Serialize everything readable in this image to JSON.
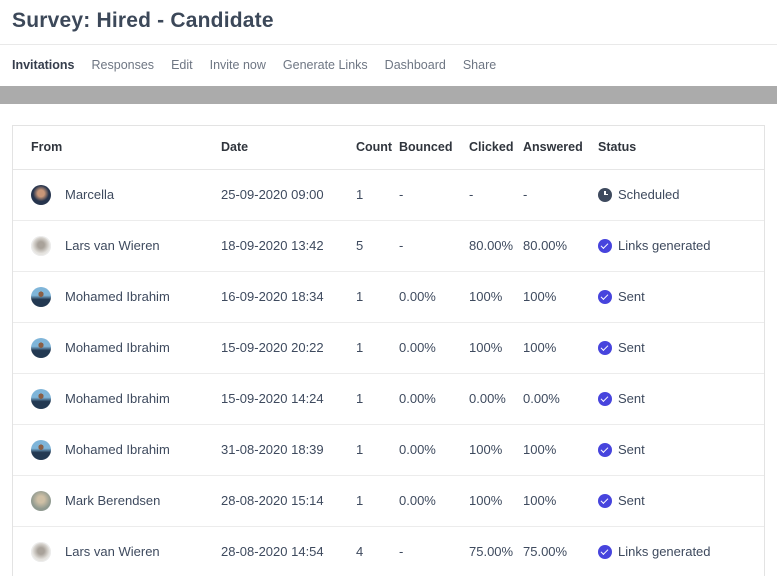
{
  "page_title": "Survey: Hired - Candidate",
  "tabs": [
    {
      "label": "Invitations",
      "active": true
    },
    {
      "label": "Responses",
      "active": false
    },
    {
      "label": "Edit",
      "active": false
    },
    {
      "label": "Invite now",
      "active": false
    },
    {
      "label": "Generate Links",
      "active": false
    },
    {
      "label": "Dashboard",
      "active": false
    },
    {
      "label": "Share",
      "active": false
    }
  ],
  "colors": {
    "check_icon": "#4744dd",
    "scheduled_icon": "#3e4a5e",
    "gray_bar": "#ababab",
    "title_text": "#3c4859"
  },
  "table": {
    "columns": [
      "From",
      "Date",
      "Count",
      "Bounced",
      "Clicked",
      "Answered",
      "Status"
    ],
    "rows": [
      {
        "from": "Marcella",
        "avatar": "marcella",
        "date": "25-09-2020 09:00",
        "count": "1",
        "bounced": "-",
        "clicked": "-",
        "answered": "-",
        "status": {
          "label": "Scheduled",
          "icon": "clock-icon"
        }
      },
      {
        "from": "Lars van Wieren",
        "avatar": "lars",
        "date": "18-09-2020 13:42",
        "count": "5",
        "bounced": "-",
        "clicked": "80.00%",
        "answered": "80.00%",
        "status": {
          "label": "Links generated",
          "icon": "check-circle-icon"
        }
      },
      {
        "from": "Mohamed Ibrahim",
        "avatar": "mohamed",
        "date": "16-09-2020 18:34",
        "count": "1",
        "bounced": "0.00%",
        "clicked": "100%",
        "answered": "100%",
        "status": {
          "label": "Sent",
          "icon": "check-circle-icon"
        }
      },
      {
        "from": "Mohamed Ibrahim",
        "avatar": "mohamed",
        "date": "15-09-2020 20:22",
        "count": "1",
        "bounced": "0.00%",
        "clicked": "100%",
        "answered": "100%",
        "status": {
          "label": "Sent",
          "icon": "check-circle-icon"
        }
      },
      {
        "from": "Mohamed Ibrahim",
        "avatar": "mohamed",
        "date": "15-09-2020 14:24",
        "count": "1",
        "bounced": "0.00%",
        "clicked": "0.00%",
        "answered": "0.00%",
        "status": {
          "label": "Sent",
          "icon": "check-circle-icon"
        }
      },
      {
        "from": "Mohamed Ibrahim",
        "avatar": "mohamed",
        "date": "31-08-2020 18:39",
        "count": "1",
        "bounced": "0.00%",
        "clicked": "100%",
        "answered": "100%",
        "status": {
          "label": "Sent",
          "icon": "check-circle-icon"
        }
      },
      {
        "from": "Mark Berendsen",
        "avatar": "mark",
        "date": "28-08-2020 15:14",
        "count": "1",
        "bounced": "0.00%",
        "clicked": "100%",
        "answered": "100%",
        "status": {
          "label": "Sent",
          "icon": "check-circle-icon"
        }
      },
      {
        "from": "Lars van Wieren",
        "avatar": "lars",
        "date": "28-08-2020 14:54",
        "count": "4",
        "bounced": "-",
        "clicked": "75.00%",
        "answered": "75.00%",
        "status": {
          "label": "Links generated",
          "icon": "check-circle-icon"
        }
      }
    ]
  }
}
